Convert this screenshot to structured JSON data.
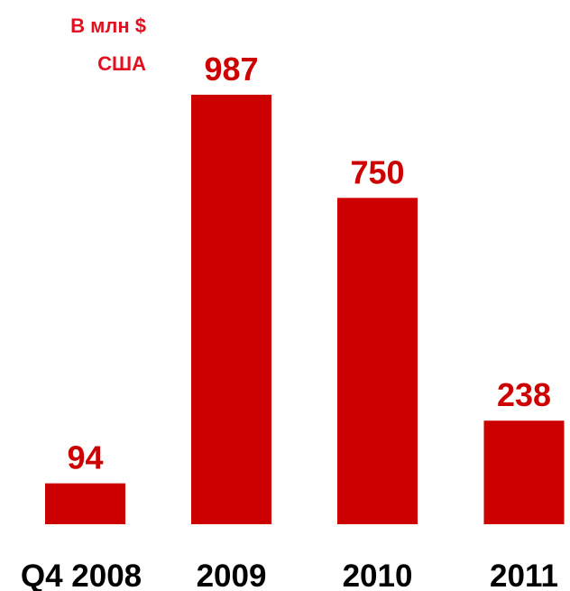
{
  "chart_data": {
    "type": "bar",
    "unit_label": [
      "В млн $",
      "США"
    ],
    "categories": [
      "Q4 2008",
      "2009",
      "2010",
      "2011"
    ],
    "values": [
      94,
      987,
      750,
      238
    ],
    "color": "#cc0000"
  }
}
